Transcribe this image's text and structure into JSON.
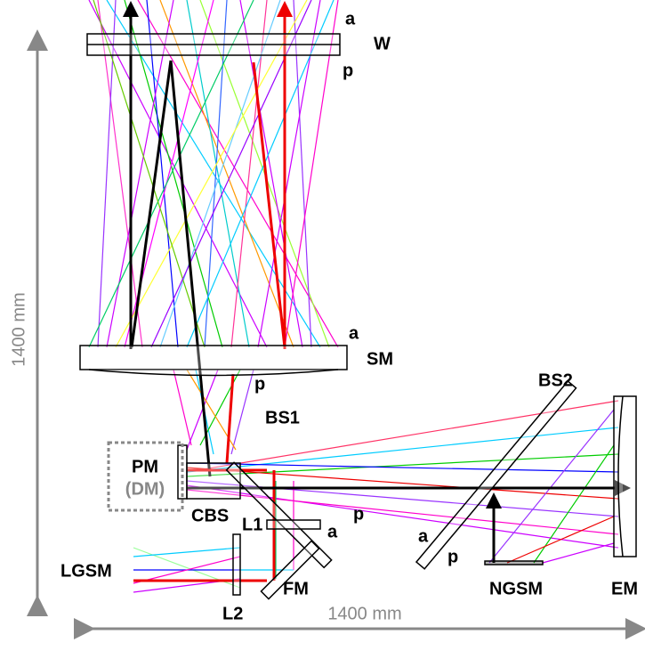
{
  "scale": {
    "vertical": "1400 mm",
    "horizontal": "1400 mm"
  },
  "labels": {
    "W": "W",
    "W_a": "a",
    "W_p": "p",
    "SM": "SM",
    "SM_a": "a",
    "SM_p": "p",
    "BS1": "BS1",
    "BS1_p": "p",
    "BS2": "BS2",
    "BS2_a": "a",
    "BS2_p": "p",
    "PM": "PM",
    "DM": "(DM)",
    "CBS": "CBS",
    "L1": "L1",
    "L1_a": "a",
    "LGSM": "LGSM",
    "L2": "L2",
    "FM": "FM",
    "NGSM": "NGSM",
    "EM": "EM"
  }
}
